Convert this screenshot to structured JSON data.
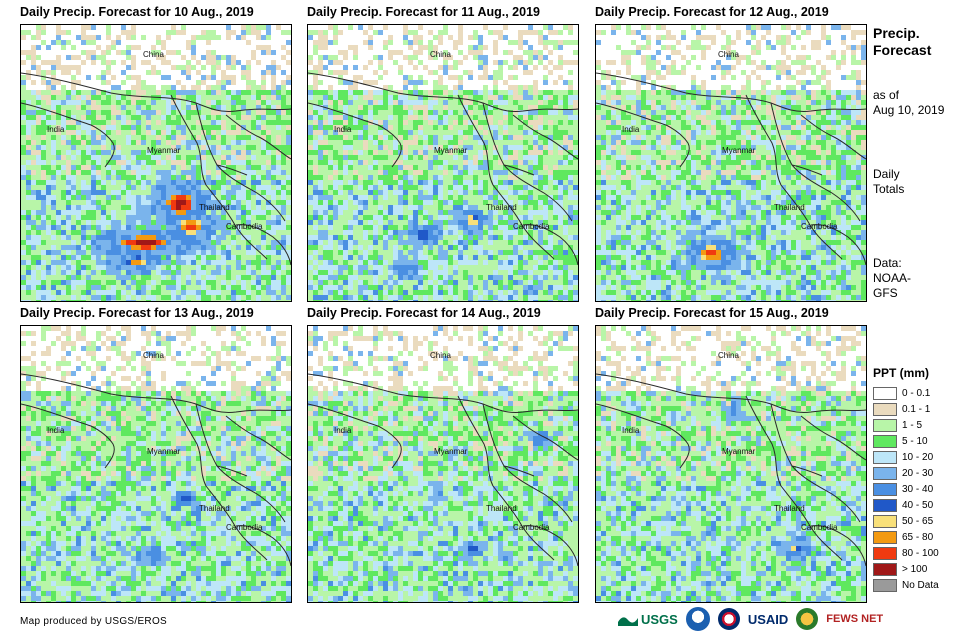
{
  "panels": [
    {
      "title": "Daily Precip. Forecast for 10 Aug., 2019",
      "seed": 10,
      "hotspots": [
        [
          0.58,
          0.64,
          10,
          8,
          5
        ],
        [
          0.45,
          0.78,
          18,
          5,
          5
        ],
        [
          0.62,
          0.72,
          9,
          6,
          4
        ],
        [
          0.42,
          0.85,
          8,
          4,
          3
        ]
      ]
    },
    {
      "title": "Daily Precip. Forecast for 11 Aug., 2019",
      "seed": 11,
      "hotspots": [
        [
          0.6,
          0.7,
          5,
          4,
          3
        ],
        [
          0.42,
          0.75,
          6,
          4,
          2
        ],
        [
          0.35,
          0.88,
          4,
          3,
          1
        ]
      ]
    },
    {
      "title": "Daily Precip. Forecast for 12 Aug., 2019",
      "seed": 12,
      "hotspots": [
        [
          0.42,
          0.82,
          9,
          6,
          4
        ]
      ]
    },
    {
      "title": "Daily Precip. Forecast for 13 Aug., 2019",
      "seed": 13,
      "hotspots": [
        [
          0.6,
          0.62,
          4,
          3,
          2
        ],
        [
          0.47,
          0.82,
          5,
          3,
          1
        ]
      ]
    },
    {
      "title": "Daily Precip. Forecast for 14 Aug., 2019",
      "seed": 14,
      "hotspots": [
        [
          0.6,
          0.8,
          4,
          3,
          2
        ],
        [
          0.86,
          0.4,
          3,
          3,
          1
        ]
      ]
    },
    {
      "title": "Daily Precip. Forecast for 15 Aug., 2019",
      "seed": 15,
      "hotspots": [
        [
          0.73,
          0.8,
          5,
          4,
          2
        ],
        [
          0.5,
          0.3,
          3,
          3,
          1
        ]
      ]
    }
  ],
  "map_labels": {
    "china": "China",
    "india": "India",
    "myanmar": "Myanmar",
    "thailand": "Thailand",
    "cambodia": "Cambodia"
  },
  "side": {
    "title_line1": "Precip.",
    "title_line2": "Forecast",
    "asof_line1": "as of",
    "asof_line2": "Aug 10, 2019",
    "daily_line1": "Daily",
    "daily_line2": "Totals",
    "data_line1": "Data:",
    "data_line2": "NOAA-",
    "data_line3": "GFS"
  },
  "legend": {
    "title": "PPT (mm)",
    "items": [
      {
        "label": "0 - 0.1",
        "color": "#ffffff"
      },
      {
        "label": "0.1 - 1",
        "color": "#eadbbe"
      },
      {
        "label": "1 - 5",
        "color": "#b8f5a8"
      },
      {
        "label": "5 - 10",
        "color": "#5fe85f"
      },
      {
        "label": "10 - 20",
        "color": "#bde6f8"
      },
      {
        "label": "20 - 30",
        "color": "#7ab4ec"
      },
      {
        "label": "30 - 40",
        "color": "#4a8fe2"
      },
      {
        "label": "40 - 50",
        "color": "#2058c8"
      },
      {
        "label": "50 - 65",
        "color": "#f8e07a"
      },
      {
        "label": "65 - 80",
        "color": "#f39a12"
      },
      {
        "label": "80 - 100",
        "color": "#f03a10"
      },
      {
        "label": "> 100",
        "color": "#a01818"
      },
      {
        "label": "No Data",
        "color": "#9a9a9a"
      }
    ]
  },
  "credit": "Map produced by USGS/EROS",
  "logos": {
    "usgs": "USGS",
    "usaid": "USAID",
    "fewsnet": "FEWS NET"
  }
}
